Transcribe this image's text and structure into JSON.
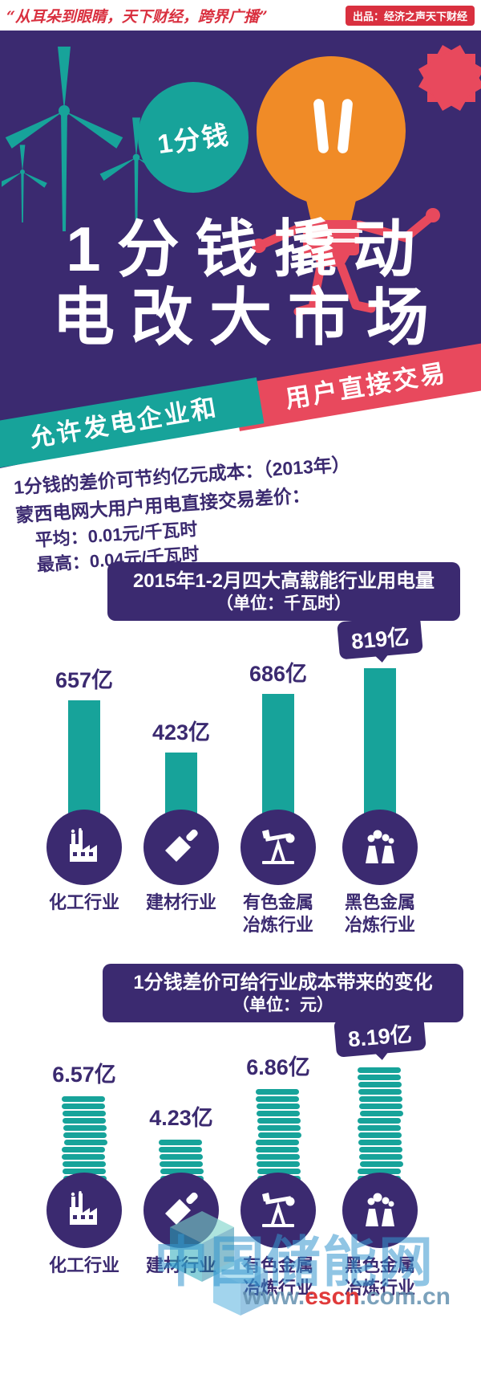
{
  "colors": {
    "purple": "#3b2a70",
    "teal": "#17a39a",
    "red": "#e8495d",
    "orange": "#f08b27",
    "watermark_blue": "#3596cd"
  },
  "header": {
    "slogan": "“从耳朵到眼睛，天下财经，跨界广播”",
    "producer": "出品：经济之声天下财经"
  },
  "hero": {
    "badge": "1分钱",
    "title_line1": "1分钱撬动",
    "title_line2": "电改大市场",
    "ribbon_left": "允许发电企业和",
    "ribbon_right": "用户直接交易"
  },
  "intro": {
    "line1": "1分钱的差价可节约亿元成本：（2013年）",
    "line2": "蒙西电网大用户用电直接交易差价：",
    "line3": "平均：0.01元/千瓦时",
    "line4": "最高：0.04元/千瓦时"
  },
  "chart_data": [
    {
      "type": "bar",
      "title": "2015年1-2月四大高载能行业用电量",
      "subtitle": "（单位：千瓦时）",
      "categories": [
        "化工行业",
        "建材行业",
        "有色金属\n冶炼行业",
        "黑色金属\n冶炼行业"
      ],
      "values": [
        657,
        423,
        686,
        819
      ],
      "value_labels": [
        "657亿",
        "423亿",
        "686亿",
        "819亿"
      ],
      "unit": "亿千瓦时",
      "highlight_index": 3,
      "bar_color": "#17a39a",
      "legend_position": "none",
      "grid": false,
      "icons": [
        "factory-icon",
        "trowel-icon",
        "pumpjack-icon",
        "steel-plant-icon"
      ]
    },
    {
      "type": "bar",
      "variant": "coin-stack",
      "title": "1分钱差价可给行业成本带来的变化",
      "subtitle": "（单位：元）",
      "categories": [
        "化工行业",
        "建材行业",
        "有色金属\n冶炼行业",
        "黑色金属\n冶炼行业"
      ],
      "values": [
        6.57,
        4.23,
        6.86,
        8.19
      ],
      "value_labels": [
        "6.57亿",
        "4.23亿",
        "6.86亿",
        "8.19亿"
      ],
      "unit": "亿元",
      "highlight_index": 3,
      "bar_color": "#17a39a",
      "legend_position": "none",
      "grid": false,
      "icons": [
        "factory-icon",
        "trowel-icon",
        "pumpjack-icon",
        "steel-plant-icon"
      ]
    }
  ],
  "watermark": {
    "brand": "中国储能网",
    "url_prefix": "www.",
    "url_highlight": "escn",
    "url_suffix": ".com.cn"
  }
}
